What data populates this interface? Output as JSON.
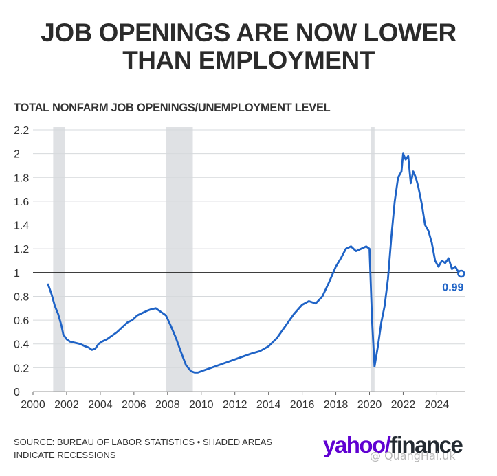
{
  "title_lines": [
    "JOB OPENINGS ARE NOW LOWER",
    "THAN EMPLOYMENT"
  ],
  "chart_data": {
    "type": "line",
    "title": "TOTAL NONFARM JOB OPENINGS/UNEMPLOYMENT LEVEL",
    "xlim": [
      2000,
      2025.7
    ],
    "ylim": [
      0,
      2.2
    ],
    "x_ticks": [
      2000,
      2002,
      2004,
      2006,
      2008,
      2010,
      2012,
      2014,
      2016,
      2018,
      2020,
      2022,
      2024
    ],
    "y_ticks": [
      0,
      0.2,
      0.4,
      0.6,
      0.8,
      1,
      1.2,
      1.4,
      1.6,
      1.8,
      2,
      2.2
    ],
    "y_tick_labels": [
      "0",
      "0.2",
      "0.4",
      "0.6",
      "0.8",
      "1",
      "1.2",
      "1.4",
      "1.6",
      "1.8",
      "2",
      "2.2"
    ],
    "grid": true,
    "reference_line": 1,
    "recessions": [
      [
        2001.2,
        2001.9
      ],
      [
        2007.9,
        2009.5
      ],
      [
        2020.1,
        2020.3
      ]
    ],
    "series": [
      {
        "color": "#1f63c6",
        "x": [
          2000.9,
          2001.1,
          2001.3,
          2001.5,
          2001.7,
          2001.8,
          2002.0,
          2002.2,
          2002.5,
          2002.8,
          2003.1,
          2003.3,
          2003.5,
          2003.7,
          2003.9,
          2004.1,
          2004.4,
          2004.7,
          2005.0,
          2005.3,
          2005.6,
          2005.9,
          2006.2,
          2006.5,
          2006.8,
          2007.0,
          2007.3,
          2007.6,
          2007.9,
          2008.2,
          2008.5,
          2008.8,
          2009.1,
          2009.4,
          2009.6,
          2009.8,
          2010.2,
          2010.6,
          2011.0,
          2011.4,
          2011.8,
          2012.2,
          2012.6,
          2013.0,
          2013.5,
          2014.0,
          2014.5,
          2015.0,
          2015.5,
          2016.0,
          2016.4,
          2016.8,
          2017.2,
          2017.6,
          2018.0,
          2018.3,
          2018.6,
          2018.9,
          2019.2,
          2019.5,
          2019.8,
          2020.0,
          2020.15,
          2020.3,
          2020.5,
          2020.7,
          2020.9,
          2021.1,
          2021.3,
          2021.5,
          2021.7,
          2021.9,
          2022.0,
          2022.15,
          2022.3,
          2022.45,
          2022.6,
          2022.75,
          2022.9,
          2023.1,
          2023.3,
          2023.5,
          2023.7,
          2023.9,
          2024.1,
          2024.3,
          2024.5,
          2024.7,
          2024.9,
          2025.1,
          2025.3,
          2025.45
        ],
        "y": [
          0.9,
          0.82,
          0.72,
          0.65,
          0.55,
          0.48,
          0.44,
          0.42,
          0.41,
          0.4,
          0.38,
          0.37,
          0.35,
          0.36,
          0.4,
          0.42,
          0.44,
          0.47,
          0.5,
          0.54,
          0.58,
          0.6,
          0.64,
          0.66,
          0.68,
          0.69,
          0.7,
          0.67,
          0.64,
          0.55,
          0.45,
          0.33,
          0.22,
          0.17,
          0.16,
          0.16,
          0.18,
          0.2,
          0.22,
          0.24,
          0.26,
          0.28,
          0.3,
          0.32,
          0.34,
          0.38,
          0.45,
          0.55,
          0.65,
          0.73,
          0.76,
          0.74,
          0.8,
          0.92,
          1.05,
          1.12,
          1.2,
          1.22,
          1.18,
          1.2,
          1.22,
          1.2,
          0.6,
          0.21,
          0.38,
          0.58,
          0.72,
          0.95,
          1.3,
          1.6,
          1.8,
          1.85,
          2.0,
          1.95,
          1.98,
          1.75,
          1.85,
          1.8,
          1.72,
          1.58,
          1.4,
          1.35,
          1.25,
          1.1,
          1.05,
          1.1,
          1.08,
          1.12,
          1.03,
          1.05,
          1.0,
          0.99
        ]
      }
    ],
    "annotation": {
      "label": "0.99",
      "x": 2025.45,
      "y": 0.99
    }
  },
  "footer": {
    "source_prefix": "SOURCE: ",
    "source_link": "BUREAU OF LABOR STATISTICS",
    "source_suffix": " • SHADED AREAS",
    "source_line2": "INDICATE RECESSIONS"
  },
  "brand": {
    "part1": "yahoo/",
    "part2": "finance"
  },
  "watermark": "@ QuangHai.uk"
}
